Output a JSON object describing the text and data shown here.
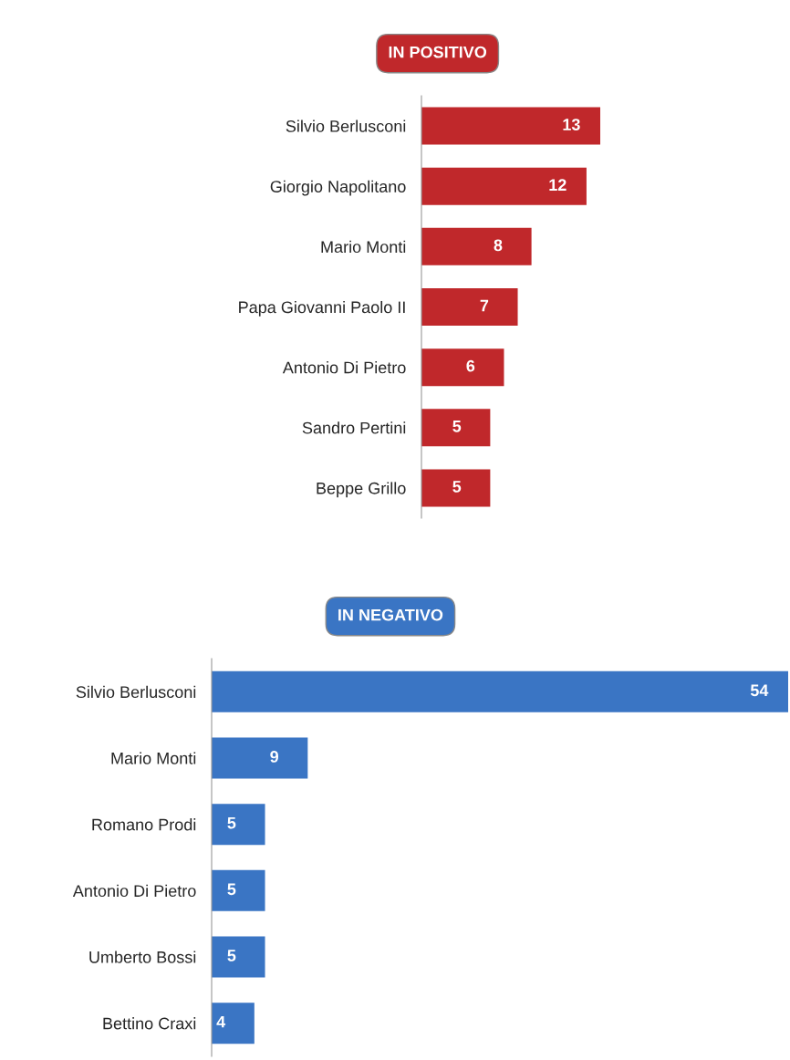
{
  "chart_data": [
    {
      "type": "bar",
      "orientation": "horizontal",
      "title": "IN POSITIVO",
      "color": "#c0282b",
      "data_labels": true,
      "categories": [
        "Silvio Berlusconi",
        "Giorgio Napolitano",
        "Mario Monti",
        "Papa Giovanni Paolo II",
        "Antonio Di Pietro",
        "Sandro Pertini",
        "Beppe Grillo"
      ],
      "values": [
        13,
        12,
        8,
        7,
        6,
        5,
        5
      ]
    },
    {
      "type": "bar",
      "orientation": "horizontal",
      "title": "IN NEGATIVO",
      "color": "#3a75c4",
      "data_labels": true,
      "categories": [
        "Silvio Berlusconi",
        "Mario Monti",
        "Romano Prodi",
        "Antonio Di Pietro",
        "Umberto Bossi",
        "Bettino Craxi"
      ],
      "values": [
        54,
        9,
        5,
        5,
        5,
        4
      ]
    }
  ]
}
